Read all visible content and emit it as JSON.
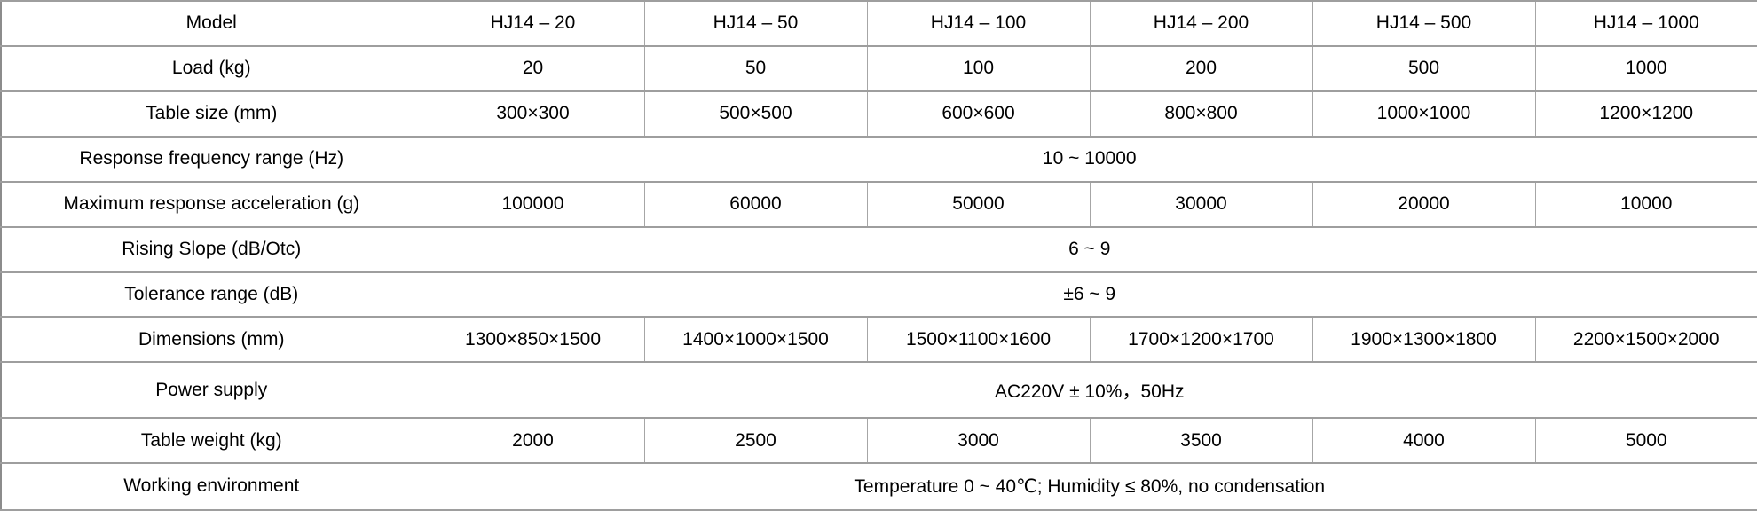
{
  "colors": {
    "background": "#ffffff",
    "grid_line": "#a6a6a6",
    "outer_border": "#8c8c8c",
    "text": "#000000"
  },
  "grid": {
    "rows": [
      {
        "label": "Model",
        "cells": [
          "HJ14 – 20",
          "HJ14 – 50",
          "HJ14 – 100",
          "HJ14 – 200",
          "HJ14 – 500",
          "HJ14 – 1000"
        ]
      },
      {
        "label": "Load (kg)",
        "cells": [
          "20",
          "50",
          "100",
          "200",
          "500",
          "1000"
        ]
      },
      {
        "label": "Table size (mm)",
        "cells": [
          "300×300",
          "500×500",
          "600×600",
          "800×800",
          "1000×1000",
          "1200×1200"
        ]
      },
      {
        "label": "Response frequency range (Hz)",
        "merged": "10 ~ 10000"
      },
      {
        "label": "Maximum response acceleration (g)",
        "cells": [
          "100000",
          "60000",
          "50000",
          "30000",
          "20000",
          "10000"
        ]
      },
      {
        "label": "Rising Slope (dB/Otc)",
        "merged": "6 ~ 9"
      },
      {
        "label": "Tolerance range (dB)",
        "merged": "±6 ~ 9"
      },
      {
        "label": "Dimensions (mm)",
        "cells": [
          "1300×850×1500",
          "1400×1000×1500",
          "1500×1100×1600",
          "1700×1200×1700",
          "1900×1300×1800",
          "2200×1500×2000"
        ]
      },
      {
        "label": "Power supply",
        "merged": "AC220V ± 10%，50Hz"
      },
      {
        "label": "Table weight (kg)",
        "cells": [
          "2000",
          "2500",
          "3000",
          "3500",
          "4000",
          "5000"
        ]
      },
      {
        "label": "Working environment",
        "merged": "Temperature 0 ~ 40℃; Humidity ≤ 80%, no condensation"
      }
    ]
  }
}
